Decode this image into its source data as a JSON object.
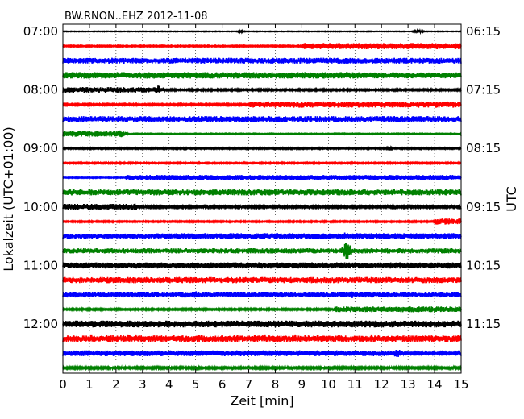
{
  "chart_data": {
    "type": "line",
    "title": "BW.RNON..EHZ 2012-11-08",
    "xlabel": "Zeit  [min]",
    "ylabel_left": "Lokalzeit (UTC+01:00)",
    "ylabel_right": "UTC",
    "xlim": [
      0,
      15
    ],
    "x_ticks": [
      "0",
      "1",
      "2",
      "3",
      "4",
      "5",
      "6",
      "7",
      "8",
      "9",
      "10",
      "11",
      "12",
      "13",
      "14",
      "15"
    ],
    "y_ticks_left": [
      "07:00",
      "08:00",
      "09:00",
      "10:00",
      "11:00",
      "12:00"
    ],
    "y_ticks_right": [
      "06:15",
      "07:15",
      "08:15",
      "09:15",
      "10:15",
      "11:15"
    ],
    "grid": "vertical dotted",
    "series_colors": [
      "#000000",
      "#ff0000",
      "#0000ff",
      "#008000"
    ],
    "traces": [
      {
        "row": 0,
        "color": "#000000",
        "base": 0.4,
        "segments": [
          [
            0,
            15,
            0.4
          ]
        ],
        "events": [
          [
            6.7,
            1.2
          ],
          [
            13.4,
            2.2
          ]
        ]
      },
      {
        "row": 1,
        "color": "#ff0000",
        "base": 0.8,
        "segments": [
          [
            0,
            9.0,
            0.8
          ],
          [
            9.0,
            15,
            3.8
          ]
        ],
        "events": []
      },
      {
        "row": 2,
        "color": "#0000ff",
        "base": 3.6,
        "segments": [
          [
            0,
            15,
            3.6
          ]
        ],
        "events": []
      },
      {
        "row": 3,
        "color": "#008000",
        "base": 4.0,
        "segments": [
          [
            0,
            11.3,
            4.0
          ],
          [
            11.3,
            15,
            3.6
          ]
        ],
        "events": [
          [
            10.7,
            5.0
          ]
        ]
      },
      {
        "row": 4,
        "color": "#000000",
        "base": 3.5,
        "segments": [
          [
            0,
            3.8,
            3.5
          ],
          [
            3.8,
            15,
            1.0
          ]
        ],
        "events": [
          [
            3.6,
            6.0
          ]
        ]
      },
      {
        "row": 5,
        "color": "#ff0000",
        "base": 1.0,
        "segments": [
          [
            0,
            7.0,
            1.0
          ],
          [
            7.0,
            15,
            3.8
          ]
        ],
        "events": []
      },
      {
        "row": 6,
        "color": "#0000ff",
        "base": 3.8,
        "segments": [
          [
            0,
            15,
            3.8
          ]
        ],
        "events": []
      },
      {
        "row": 7,
        "color": "#008000",
        "base": 3.6,
        "segments": [
          [
            0,
            2.2,
            3.6
          ],
          [
            2.2,
            15,
            0.6
          ]
        ],
        "events": [
          [
            2.2,
            5.0
          ]
        ]
      },
      {
        "row": 8,
        "color": "#000000",
        "base": 0.8,
        "segments": [
          [
            0,
            15,
            0.8
          ]
        ],
        "events": [
          [
            12.3,
            1.6
          ]
        ]
      },
      {
        "row": 9,
        "color": "#ff0000",
        "base": 0.8,
        "segments": [
          [
            0,
            15,
            0.8
          ]
        ],
        "events": []
      },
      {
        "row": 10,
        "color": "#0000ff",
        "base": 0.6,
        "segments": [
          [
            0,
            2.4,
            0.6
          ],
          [
            2.4,
            15,
            3.4
          ]
        ],
        "events": []
      },
      {
        "row": 11,
        "color": "#008000",
        "base": 3.8,
        "segments": [
          [
            0,
            15,
            3.8
          ]
        ],
        "events": []
      },
      {
        "row": 12,
        "color": "#000000",
        "base": 3.8,
        "segments": [
          [
            0,
            2.8,
            3.8
          ],
          [
            2.8,
            15,
            1.2
          ]
        ],
        "events": [
          [
            2.7,
            5.0
          ]
        ]
      },
      {
        "row": 13,
        "color": "#ff0000",
        "base": 0.8,
        "segments": [
          [
            0,
            14.0,
            0.8
          ],
          [
            14.0,
            15,
            3.8
          ]
        ],
        "events": []
      },
      {
        "row": 14,
        "color": "#0000ff",
        "base": 3.2,
        "segments": [
          [
            0,
            3.5,
            3.2
          ],
          [
            3.5,
            15,
            3.8
          ]
        ],
        "events": [
          [
            10.6,
            6.5
          ]
        ]
      },
      {
        "row": 15,
        "color": "#008000",
        "base": 3.2,
        "segments": [
          [
            0,
            15,
            3.2
          ]
        ],
        "events": [
          [
            10.7,
            12.0
          ]
        ]
      },
      {
        "row": 16,
        "color": "#000000",
        "base": 3.8,
        "segments": [
          [
            0,
            15,
            3.8
          ]
        ],
        "events": []
      },
      {
        "row": 17,
        "color": "#ff0000",
        "base": 3.8,
        "segments": [
          [
            0,
            15,
            3.8
          ]
        ],
        "events": []
      },
      {
        "row": 18,
        "color": "#0000ff",
        "base": 3.4,
        "segments": [
          [
            0,
            15,
            3.4
          ]
        ],
        "events": [
          [
            5.0,
            5.0
          ],
          [
            10.9,
            4.5
          ]
        ]
      },
      {
        "row": 19,
        "color": "#008000",
        "base": 1.0,
        "segments": [
          [
            0,
            10.2,
            1.0
          ],
          [
            10.2,
            15,
            3.6
          ]
        ],
        "events": [
          [
            14.0,
            4.5
          ]
        ]
      },
      {
        "row": 20,
        "color": "#000000",
        "base": 4.2,
        "segments": [
          [
            0,
            15,
            4.2
          ]
        ],
        "events": []
      },
      {
        "row": 21,
        "color": "#ff0000",
        "base": 4.2,
        "segments": [
          [
            0,
            15,
            4.2
          ]
        ],
        "events": []
      },
      {
        "row": 22,
        "color": "#0000ff",
        "base": 3.6,
        "segments": [
          [
            0,
            12.7,
            3.6
          ],
          [
            12.7,
            15,
            1.2
          ]
        ],
        "events": [
          [
            12.6,
            6.0
          ]
        ]
      },
      {
        "row": 23,
        "color": "#008000",
        "base": 1.2,
        "segments": [
          [
            0,
            15,
            1.2
          ]
        ],
        "events": []
      }
    ]
  }
}
